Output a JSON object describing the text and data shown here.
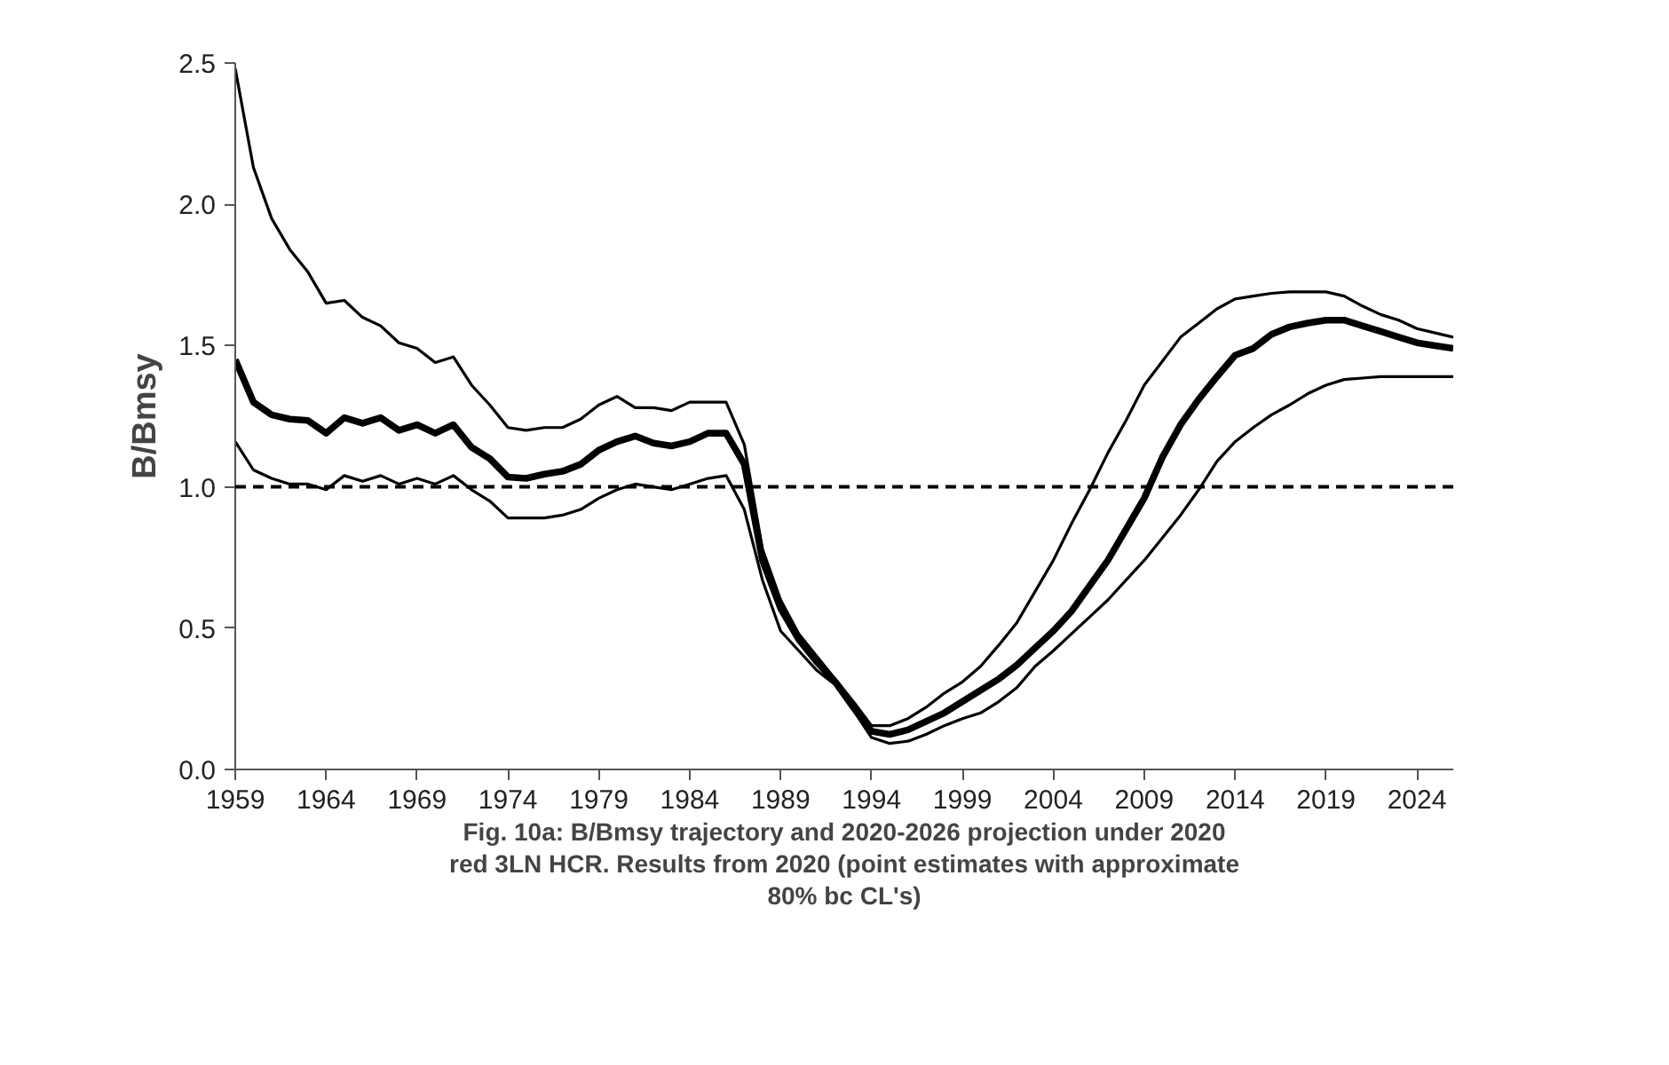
{
  "chart_data": {
    "type": "line",
    "ylabel": "B/Bmsy",
    "x": [
      1959,
      1960,
      1961,
      1962,
      1963,
      1964,
      1965,
      1966,
      1967,
      1968,
      1969,
      1970,
      1971,
      1972,
      1973,
      1974,
      1975,
      1976,
      1977,
      1978,
      1979,
      1980,
      1981,
      1982,
      1983,
      1984,
      1985,
      1986,
      1987,
      1988,
      1989,
      1990,
      1991,
      1992,
      1993,
      1994,
      1995,
      1996,
      1997,
      1998,
      1999,
      2000,
      2001,
      2002,
      2003,
      2004,
      2005,
      2006,
      2007,
      2008,
      2009,
      2010,
      2011,
      2012,
      2013,
      2014,
      2015,
      2016,
      2017,
      2018,
      2019,
      2020,
      2021,
      2022,
      2023,
      2024,
      2025,
      2026
    ],
    "series": [
      {
        "color": "#000000",
        "values": [
          2.48,
          2.13,
          1.95,
          1.84,
          1.76,
          1.65,
          1.66,
          1.6,
          1.57,
          1.51,
          1.49,
          1.44,
          1.46,
          1.36,
          1.29,
          1.21,
          1.2,
          1.21,
          1.21,
          1.24,
          1.29,
          1.32,
          1.28,
          1.28,
          1.27,
          1.3,
          1.3,
          1.3,
          1.15,
          0.78,
          0.6,
          0.48,
          0.4,
          0.32,
          0.24,
          0.155,
          0.155,
          0.18,
          0.22,
          0.27,
          0.31,
          0.365,
          0.44,
          0.52,
          0.63,
          0.74,
          0.87,
          0.99,
          1.12,
          1.235,
          1.36,
          1.445,
          1.53,
          1.58,
          1.63,
          1.665,
          1.675,
          1.685,
          1.69,
          1.69,
          1.69,
          1.675,
          1.64,
          1.61,
          1.59,
          1.56,
          1.545,
          1.53
        ]
      },
      {
        "color": "#000000",
        "values": [
          1.45,
          1.3,
          1.255,
          1.24,
          1.235,
          1.19,
          1.245,
          1.225,
          1.245,
          1.2,
          1.22,
          1.19,
          1.22,
          1.14,
          1.1,
          1.035,
          1.03,
          1.045,
          1.055,
          1.08,
          1.13,
          1.16,
          1.18,
          1.155,
          1.145,
          1.16,
          1.19,
          1.19,
          1.08,
          0.74,
          0.57,
          0.46,
          0.38,
          0.31,
          0.22,
          0.135,
          0.124,
          0.14,
          0.17,
          0.2,
          0.24,
          0.28,
          0.32,
          0.37,
          0.43,
          0.49,
          0.56,
          0.65,
          0.74,
          0.85,
          0.96,
          1.105,
          1.22,
          1.31,
          1.39,
          1.466,
          1.49,
          1.54,
          1.566,
          1.58,
          1.59,
          1.59,
          1.57,
          1.55,
          1.53,
          1.51,
          1.5,
          1.49
        ]
      },
      {
        "color": "#000000",
        "values": [
          1.16,
          1.06,
          1.03,
          1.01,
          1.01,
          0.99,
          1.04,
          1.02,
          1.04,
          1.01,
          1.03,
          1.01,
          1.04,
          0.99,
          0.95,
          0.89,
          0.89,
          0.89,
          0.9,
          0.92,
          0.96,
          0.99,
          1.01,
          1.0,
          0.99,
          1.01,
          1.03,
          1.04,
          0.92,
          0.67,
          0.49,
          0.42,
          0.35,
          0.3,
          0.21,
          0.113,
          0.092,
          0.1,
          0.124,
          0.155,
          0.18,
          0.2,
          0.24,
          0.29,
          0.365,
          0.42,
          0.48,
          0.54,
          0.6,
          0.67,
          0.74,
          0.82,
          0.9,
          0.99,
          1.09,
          1.16,
          1.21,
          1.255,
          1.29,
          1.33,
          1.36,
          1.38,
          1.385,
          1.39,
          1.39,
          1.39,
          1.39,
          1.39
        ]
      }
    ],
    "xlim": [
      1959,
      2026
    ],
    "xticks": [
      1959,
      1964,
      1969,
      1974,
      1979,
      1984,
      1989,
      1994,
      1999,
      2004,
      2009,
      2014,
      2019,
      2024
    ],
    "ylim": [
      0,
      2.5
    ],
    "yticks": [
      {
        "value": 0,
        "label": "0.0"
      },
      {
        "value": 0.5,
        "label": "0.5"
      },
      {
        "value": 1,
        "label": "1.0"
      },
      {
        "value": 1.5,
        "label": "1.5"
      },
      {
        "value": 2,
        "label": "2.0"
      },
      {
        "value": 2.5,
        "label": "2.5"
      }
    ],
    "ref_lines": [
      {
        "axis": "y",
        "value": 1.0,
        "color": "#000000",
        "line_style": "dashed"
      }
    ],
    "annotations": [
      "Fig. 10a: B/Bmsy trajectory and 2020-2026 projection under 2020 red 3LN HCR. Results from 2020 (point estimates with approximate 80% bc CL's)"
    ],
    "grid": false,
    "marker": "none",
    "line_style": "solid"
  }
}
